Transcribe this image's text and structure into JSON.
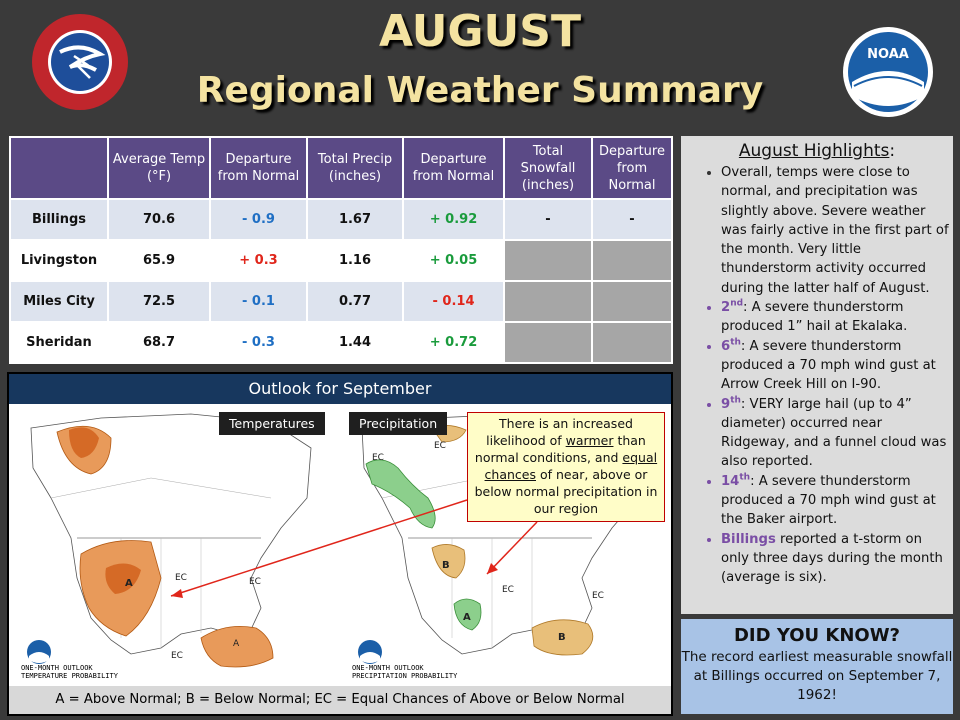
{
  "header": {
    "title_line1": "AUGUST",
    "title_line2": "Regional Weather Summary",
    "left_logo_text": "NATIONAL WEATHER SERVICE",
    "right_logo_text": "NOAA"
  },
  "table": {
    "headers": [
      "",
      "Average Temp (°F)",
      "Departure from Normal",
      "Total Precip (inches)",
      "Departure from Normal",
      "Total Snowfall (inches)",
      "Departure from Normal"
    ],
    "rows": [
      {
        "city": "Billings",
        "temp": "70.6",
        "temp_dep": "- 0.9",
        "precip": "1.67",
        "precip_dep": "+ 0.92",
        "snow": "-",
        "snow_dep": "-"
      },
      {
        "city": "Livingston",
        "temp": "65.9",
        "temp_dep": "+ 0.3",
        "precip": "1.16",
        "precip_dep": "+ 0.05",
        "snow": "",
        "snow_dep": ""
      },
      {
        "city": "Miles City",
        "temp": "72.5",
        "temp_dep": "- 0.1",
        "precip": "0.77",
        "precip_dep": "- 0.14",
        "snow": "",
        "snow_dep": ""
      },
      {
        "city": "Sheridan",
        "temp": "68.7",
        "temp_dep": "- 0.3",
        "precip": "1.44",
        "precip_dep": "+ 0.72",
        "snow": "",
        "snow_dep": ""
      }
    ]
  },
  "highlights": {
    "title": "August Highlights",
    "colon": ":",
    "items": [
      {
        "text": "Overall, temps were close to normal, and precipitation was slightly above. Severe weather was fairly active in the first part of the month. Very little thunderstorm activity occurred during the latter half of August."
      },
      {
        "day": "2",
        "sup": "nd",
        "text": ": A severe thunderstorm produced 1” hail at Ekalaka."
      },
      {
        "day": "6",
        "sup": "th",
        "text": ": A severe thunderstorm produced a 70 mph wind gust at Arrow Creek Hill on I-90."
      },
      {
        "day": "9",
        "sup": "th",
        "text": ": VERY large hail (up to 4” diameter) occurred near Ridgeway, and a funnel cloud was also reported."
      },
      {
        "day": "14",
        "sup": "th",
        "text": ": A severe thunderstorm produced a 70 mph wind gust at the Baker airport."
      },
      {
        "day": "Billings",
        "sup": "",
        "text": " reported a t-storm on only three days during the month (average is six)."
      }
    ]
  },
  "did_you_know": {
    "title": "DID YOU KNOW?",
    "text": "The record earliest measurable snowfall at Billings occurred on September 7, 1962!"
  },
  "outlook": {
    "title": "Outlook for September",
    "temp_label": "Temperatures",
    "precip_label": "Precipitation",
    "callout_pre": "There is an increased likelihood of ",
    "callout_u1": "warmer",
    "callout_mid": " than normal conditions, and ",
    "callout_u2": "equal chances",
    "callout_post": " of near, above or below normal precipitation in our region",
    "temp_map_caption": "ONE-MONTH OUTLOOK\nTEMPERATURE PROBABILITY",
    "precip_map_caption": "ONE-MONTH OUTLOOK\nPRECIPITATION PROBABILITY",
    "legend": "A = Above Normal;  B = Below Normal;  EC = Equal Chances of Above or Below Normal"
  },
  "colors": {
    "title": "#f4e3a1",
    "table_header": "#5b4a86",
    "above_normal_temp": "#e07a2e",
    "below_normal_precip": "#d9a35a",
    "above_normal_precip": "#5aaa5a",
    "outlook_bar": "#17375e",
    "did_you_know_bg": "#a8c3e6"
  }
}
